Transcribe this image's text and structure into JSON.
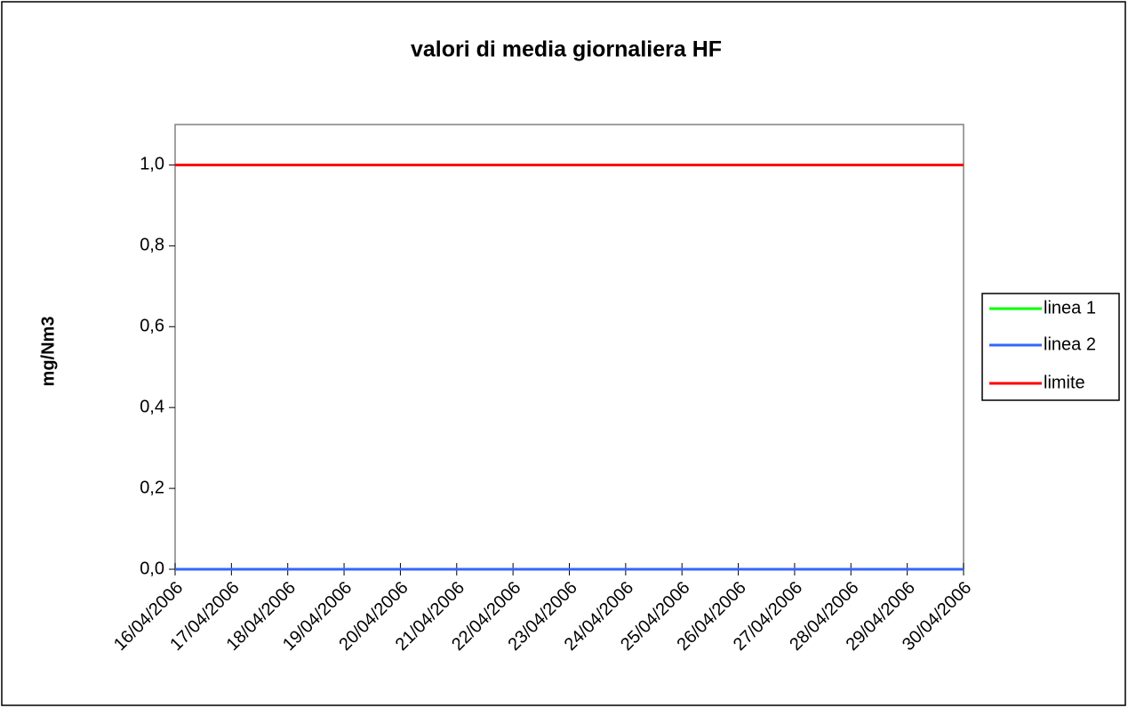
{
  "chart_data": {
    "type": "line",
    "title": "valori di media giornaliera  HF",
    "y_label": "mg/Nm3",
    "categories": [
      "16/04/2006",
      "17/04/2006",
      "18/04/2006",
      "19/04/2006",
      "20/04/2006",
      "21/04/2006",
      "22/04/2006",
      "23/04/2006",
      "24/04/2006",
      "25/04/2006",
      "26/04/2006",
      "27/04/2006",
      "28/04/2006",
      "29/04/2006",
      "30/04/2006"
    ],
    "series": [
      {
        "name": "linea 1",
        "color": "#00ff00",
        "values": [
          0,
          0,
          0,
          0,
          0,
          0,
          0,
          0,
          0,
          0,
          0,
          0,
          0,
          0,
          0
        ]
      },
      {
        "name": "linea 2",
        "color": "#3366ff",
        "values": [
          0,
          0,
          0,
          0,
          0,
          0,
          0,
          0,
          0,
          0,
          0,
          0,
          0,
          0,
          0
        ]
      },
      {
        "name": "limite",
        "color": "#ff0000",
        "values": [
          1,
          1,
          1,
          1,
          1,
          1,
          1,
          1,
          1,
          1,
          1,
          1,
          1,
          1,
          1
        ]
      }
    ],
    "ylim": [
      0,
      1.1
    ],
    "yticks": [
      {
        "value": 0,
        "label": "0,0"
      },
      {
        "value": 0.2,
        "label": "0,2"
      },
      {
        "value": 0.4,
        "label": "0,4"
      },
      {
        "value": 0.6,
        "label": "0,6"
      },
      {
        "value": 0.8,
        "label": "0,8"
      },
      {
        "value": 1,
        "label": "1,0"
      }
    ],
    "grid": false,
    "legend": "right"
  }
}
